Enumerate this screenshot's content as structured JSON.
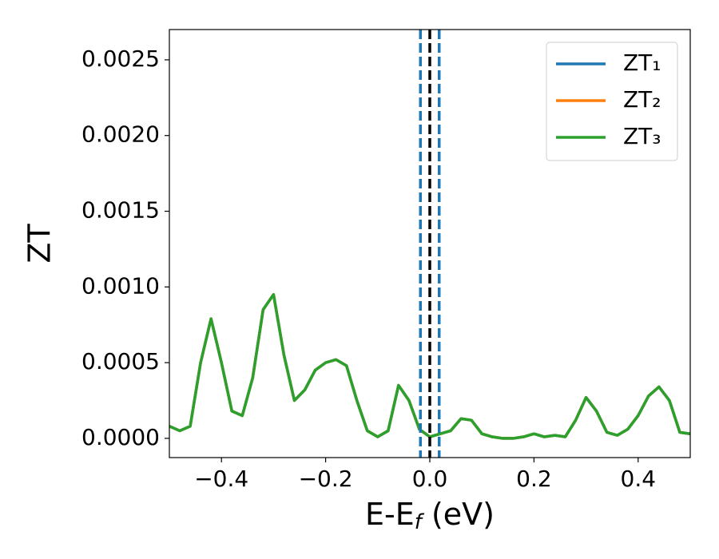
{
  "chart_data": {
    "type": "line",
    "ylabel": "ZT",
    "xlabel": {
      "main": "E-E",
      "sub": "f",
      "rest": " (eV)"
    },
    "x": [
      -0.5,
      -0.48,
      -0.46,
      -0.44,
      -0.42,
      -0.4,
      -0.38,
      -0.36,
      -0.34,
      -0.32,
      -0.3,
      -0.28,
      -0.26,
      -0.24,
      -0.22,
      -0.2,
      -0.18,
      -0.16,
      -0.14,
      -0.12,
      -0.1,
      -0.08,
      -0.06,
      -0.04,
      -0.02,
      0,
      0.02,
      0.04,
      0.06,
      0.08,
      0.1,
      0.12,
      0.14,
      0.16,
      0.18,
      0.2,
      0.22,
      0.24,
      0.26,
      0.28,
      0.3,
      0.32,
      0.34,
      0.36,
      0.38,
      0.4,
      0.42,
      0.44,
      0.46,
      0.48,
      0.5
    ],
    "series": [
      {
        "name": "ZT₁",
        "color": "#1f77b4",
        "values": [
          8e-05,
          5e-05,
          8e-05,
          0.0005,
          0.00079,
          0.0005,
          0.00018,
          0.00015,
          0.0004,
          0.00085,
          0.00095,
          0.00055,
          0.00025,
          0.00032,
          0.00045,
          0.0005,
          0.00052,
          0.00048,
          0.00025,
          5e-05,
          1e-05,
          5e-05,
          0.00035,
          0.00025,
          6e-05,
          1e-05,
          3e-05,
          5e-05,
          0.00013,
          0.00012,
          3e-05,
          1e-05,
          0,
          0,
          1e-05,
          3e-05,
          1e-05,
          2e-05,
          1e-05,
          0.00012,
          0.00027,
          0.00018,
          4e-05,
          2e-05,
          6e-05,
          0.00015,
          0.00028,
          0.00034,
          0.00025,
          4e-05,
          3e-05
        ]
      },
      {
        "name": "ZT₂",
        "color": "#ff7f0e",
        "values": [
          8e-05,
          5e-05,
          8e-05,
          0.0005,
          0.00079,
          0.0005,
          0.00018,
          0.00015,
          0.0004,
          0.00085,
          0.00095,
          0.00055,
          0.00025,
          0.00032,
          0.00045,
          0.0005,
          0.00052,
          0.00048,
          0.00025,
          5e-05,
          1e-05,
          5e-05,
          0.00035,
          0.00025,
          6e-05,
          1e-05,
          3e-05,
          5e-05,
          0.00013,
          0.00012,
          3e-05,
          1e-05,
          0,
          0,
          1e-05,
          3e-05,
          1e-05,
          2e-05,
          1e-05,
          0.00012,
          0.00027,
          0.00018,
          4e-05,
          2e-05,
          6e-05,
          0.00015,
          0.00028,
          0.00034,
          0.00025,
          4e-05,
          3e-05
        ]
      },
      {
        "name": "ZT₃",
        "color": "#2ca02c",
        "values": [
          8e-05,
          5e-05,
          8e-05,
          0.0005,
          0.00079,
          0.0005,
          0.00018,
          0.00015,
          0.0004,
          0.00085,
          0.00095,
          0.00055,
          0.00025,
          0.00032,
          0.00045,
          0.0005,
          0.00052,
          0.00048,
          0.00025,
          5e-05,
          1e-05,
          5e-05,
          0.00035,
          0.00025,
          6e-05,
          1e-05,
          3e-05,
          5e-05,
          0.00013,
          0.00012,
          3e-05,
          1e-05,
          0,
          0,
          1e-05,
          3e-05,
          1e-05,
          2e-05,
          1e-05,
          0.00012,
          0.00027,
          0.00018,
          4e-05,
          2e-05,
          6e-05,
          0.00015,
          0.00028,
          0.00034,
          0.00025,
          4e-05,
          3e-05
        ]
      }
    ],
    "vlines": [
      {
        "x": -0.018,
        "color": "#1f77b4",
        "dashed": true
      },
      {
        "x": 0,
        "color": "#000000",
        "dashed": true
      },
      {
        "x": 0.018,
        "color": "#1f77b4",
        "dashed": true
      }
    ],
    "xlim": [
      -0.5,
      0.5
    ],
    "ylim": [
      -0.000127,
      0.0027
    ],
    "xticks": [
      {
        "value": -0.4,
        "label": "−0.4"
      },
      {
        "value": -0.2,
        "label": "−0.2"
      },
      {
        "value": 0,
        "label": "0.0"
      },
      0.2,
      0.4
    ],
    "yticks": [
      {
        "value": 0,
        "label": "0.0000"
      },
      0.0005,
      {
        "value": 0.001,
        "label": "0.0010"
      },
      0.0015,
      {
        "value": 0.002,
        "label": "0.0020"
      },
      0.0025
    ],
    "legend": "upper right",
    "grid": false
  }
}
